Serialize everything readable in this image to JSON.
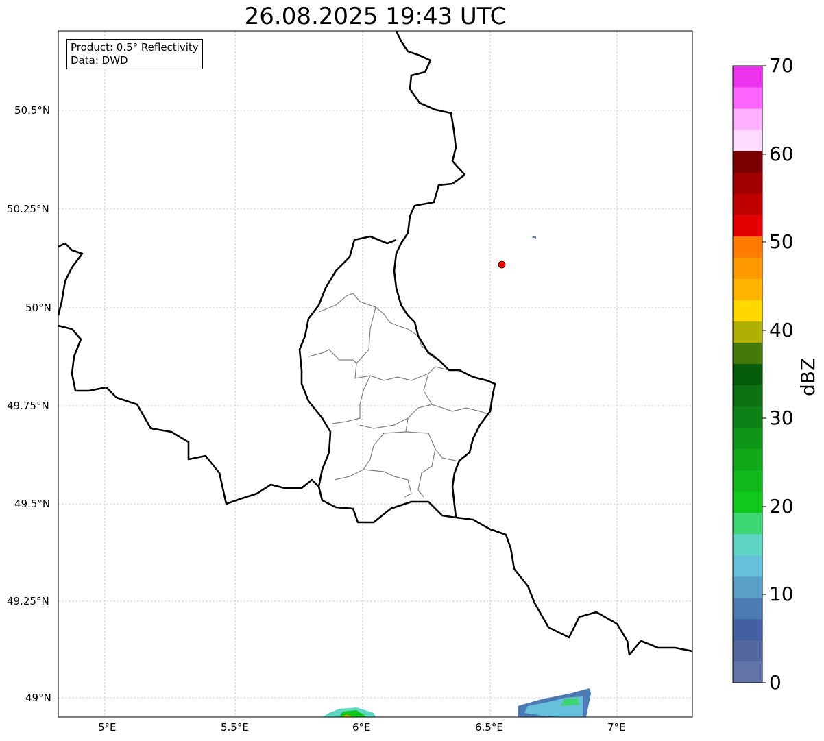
{
  "title": "26.08.2025 19:43 UTC",
  "legend": {
    "product": "Product: 0.5° Reflectivity",
    "data": "Data: DWD"
  },
  "axes": {
    "lon_ticks": [
      "5°E",
      "5.5°E",
      "6°E",
      "6.5°E",
      "7°E"
    ],
    "lat_ticks": [
      "50.5°N",
      "50.25°N",
      "50°N",
      "49.75°N",
      "49.5°N",
      "49.25°N",
      "49°N"
    ]
  },
  "colorbar": {
    "label": "dBZ",
    "ticks": [
      "0",
      "10",
      "20",
      "30",
      "40",
      "50",
      "60",
      "70"
    ],
    "range": [
      0,
      70
    ],
    "step": 2.5,
    "colors": [
      "#6273a8",
      "#5468a0",
      "#4360a2",
      "#4c7bb3",
      "#5aa0c7",
      "#65c0dc",
      "#5fd6c4",
      "#3ed672",
      "#11c81c",
      "#10b81a",
      "#0fa817",
      "#0e9516",
      "#0c8014",
      "#0a7012",
      "#055c0a",
      "#457a0a",
      "#b0b004",
      "#ffd800",
      "#ffb400",
      "#ff9a00",
      "#ff7c00",
      "#e20000",
      "#c00000",
      "#a00000",
      "#7a0000",
      "#ffdcff",
      "#ffb0ff",
      "#ff66ff",
      "#ee33ee"
    ]
  },
  "marker": {
    "color": "#ff0000"
  }
}
